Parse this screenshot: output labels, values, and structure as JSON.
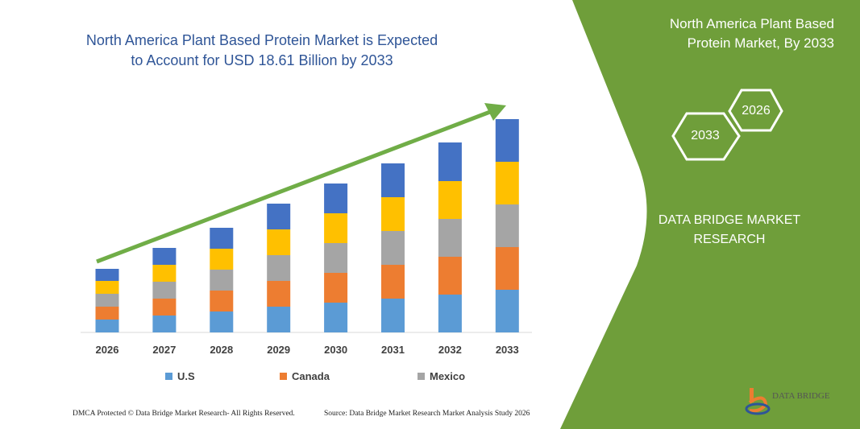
{
  "title": "North America Plant Based Protein Market is Expected to Account for USD 18.61 Billion by 2033",
  "side_panel": {
    "title": "North America Plant Based Protein Market, By 2033",
    "hex_years": [
      "2033",
      "2026"
    ],
    "brand": "DATA BRIDGE MARKET RESEARCH",
    "logo_text": "DATA BRIDGE",
    "color": "#6f9e3a"
  },
  "footer": {
    "left": "DMCA Protected © Data Bridge Market Research- All Rights Reserved.",
    "right": "Source: Data Bridge Market Research Market Analysis Study 2026"
  },
  "chart_data": {
    "type": "bar",
    "stacked": true,
    "categories": [
      "2026",
      "2027",
      "2028",
      "2029",
      "2030",
      "2031",
      "2032",
      "2033"
    ],
    "series": [
      {
        "name": "U.S",
        "color": "#5b9bd5",
        "values": [
          16,
          21,
          26,
          32,
          37,
          42,
          47,
          53
        ]
      },
      {
        "name": "Canada",
        "color": "#ed7d31",
        "values": [
          16,
          21,
          26,
          32,
          37,
          42,
          47,
          53
        ]
      },
      {
        "name": "Mexico",
        "color": "#a5a5a5",
        "values": [
          16,
          21,
          26,
          32,
          37,
          42,
          47,
          53
        ]
      },
      {
        "color": "#ffc000",
        "values": [
          16,
          21,
          26,
          32,
          37,
          42,
          47,
          53
        ]
      },
      {
        "color": "#4472c4",
        "values": [
          15,
          21,
          26,
          32,
          37,
          42,
          48,
          53
        ]
      }
    ],
    "trend_arrow_color": "#70ad47",
    "y_axis_shown": false,
    "grid": false,
    "legend_position": "bottom"
  }
}
